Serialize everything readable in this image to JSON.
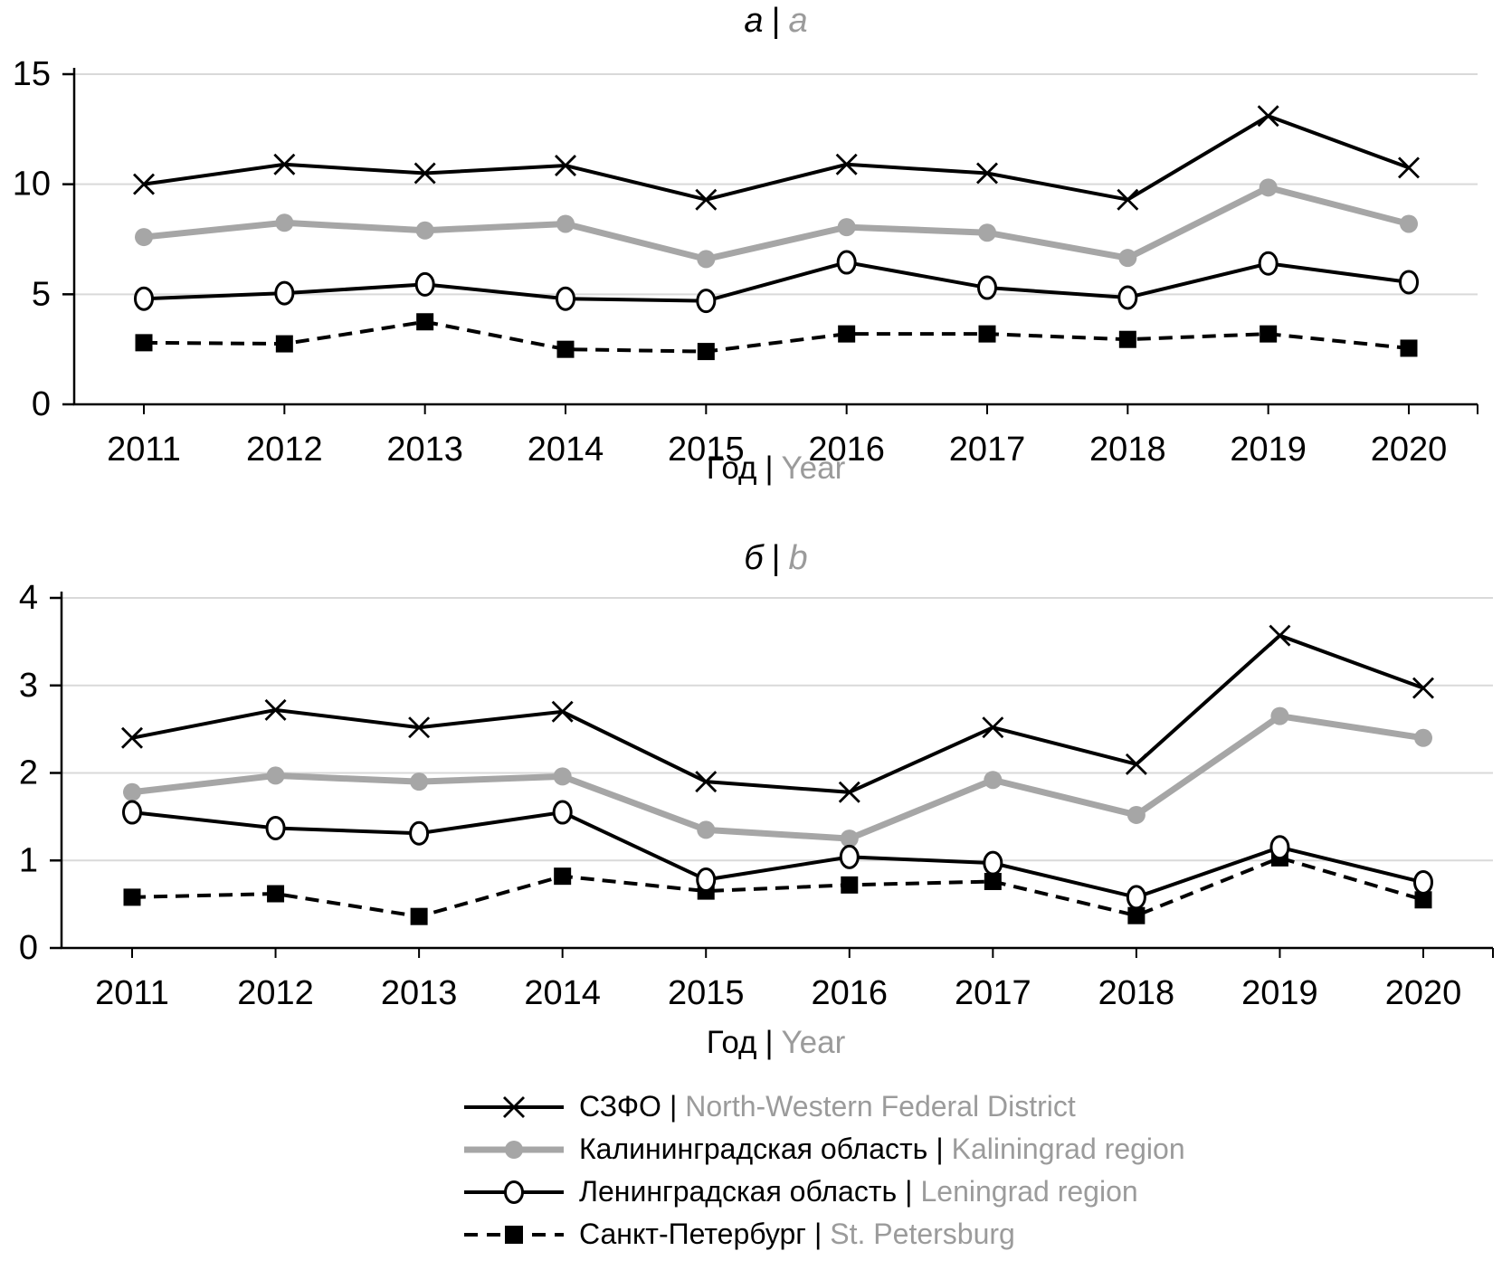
{
  "sep": "|",
  "colors": {
    "series_black": "#000000",
    "series_gray": "#A6A6A6",
    "text_gray": "#9B9B9B",
    "gridline": "#D9D9D9",
    "background": "#FFFFFF"
  },
  "chart_data": [
    {
      "type": "line",
      "panel_label_ru": "а",
      "panel_label_en": "a",
      "xlabel_ru": "Год",
      "xlabel_en": "Year",
      "x": [
        2011,
        2012,
        2013,
        2014,
        2015,
        2016,
        2017,
        2018,
        2019,
        2020
      ],
      "ylim": [
        0,
        15
      ],
      "yticks": [
        0,
        5,
        10,
        15
      ],
      "grid": true,
      "legend_position": "bottom-shared",
      "series": [
        {
          "id": "szfo",
          "name_ru": "СЗФО",
          "name_en": "North-Western Federal District",
          "marker": "x",
          "style": "solid-black",
          "values": [
            10.0,
            10.9,
            10.5,
            10.85,
            9.3,
            10.9,
            10.5,
            9.3,
            13.1,
            10.75
          ]
        },
        {
          "id": "kaliningrad",
          "name_ru": "Калининградская область",
          "name_en": "Kaliningrad region",
          "marker": "circle-filled",
          "style": "solid-gray-thick",
          "values": [
            7.6,
            8.25,
            7.9,
            8.2,
            6.6,
            8.05,
            7.8,
            6.65,
            9.85,
            8.2
          ]
        },
        {
          "id": "leningrad",
          "name_ru": "Ленинградская область",
          "name_en": "Leningrad region",
          "marker": "circle-open",
          "style": "solid-black",
          "values": [
            4.8,
            5.05,
            5.45,
            4.8,
            4.7,
            6.45,
            5.3,
            4.85,
            6.4,
            5.55
          ]
        },
        {
          "id": "spb",
          "name_ru": "Санкт-Петербург",
          "name_en": "St. Petersburg",
          "marker": "square-filled",
          "style": "dashed-black",
          "values": [
            2.8,
            2.75,
            3.75,
            2.5,
            2.4,
            3.2,
            3.2,
            2.95,
            3.2,
            2.55
          ]
        }
      ]
    },
    {
      "type": "line",
      "panel_label_ru": "б",
      "panel_label_en": "b",
      "xlabel_ru": "Год",
      "xlabel_en": "Year",
      "x": [
        2011,
        2012,
        2013,
        2014,
        2015,
        2016,
        2017,
        2018,
        2019,
        2020
      ],
      "ylim": [
        0,
        4
      ],
      "yticks": [
        0,
        1,
        2,
        3,
        4
      ],
      "grid": true,
      "legend_position": "bottom-shared",
      "series": [
        {
          "id": "szfo",
          "name_ru": "СЗФО",
          "name_en": "North-Western Federal District",
          "marker": "x",
          "style": "solid-black",
          "values": [
            2.4,
            2.72,
            2.52,
            2.7,
            1.9,
            1.78,
            2.52,
            2.1,
            3.57,
            2.97
          ]
        },
        {
          "id": "kaliningrad",
          "name_ru": "Калининградская область",
          "name_en": "Kaliningrad region",
          "marker": "circle-filled",
          "style": "solid-gray-thick",
          "values": [
            1.78,
            1.97,
            1.9,
            1.96,
            1.35,
            1.25,
            1.92,
            1.52,
            2.65,
            2.4
          ]
        },
        {
          "id": "leningrad",
          "name_ru": "Ленинградская область",
          "name_en": "Leningrad region",
          "marker": "circle-open",
          "style": "solid-black",
          "values": [
            1.55,
            1.37,
            1.31,
            1.55,
            0.78,
            1.04,
            0.97,
            0.58,
            1.15,
            0.75
          ]
        },
        {
          "id": "spb",
          "name_ru": "Санкт-Петербург",
          "name_en": "St. Petersburg",
          "marker": "square-filled",
          "style": "dashed-black",
          "values": [
            0.58,
            0.62,
            0.36,
            0.82,
            0.65,
            0.72,
            0.76,
            0.37,
            1.03,
            0.55
          ]
        }
      ]
    }
  ]
}
